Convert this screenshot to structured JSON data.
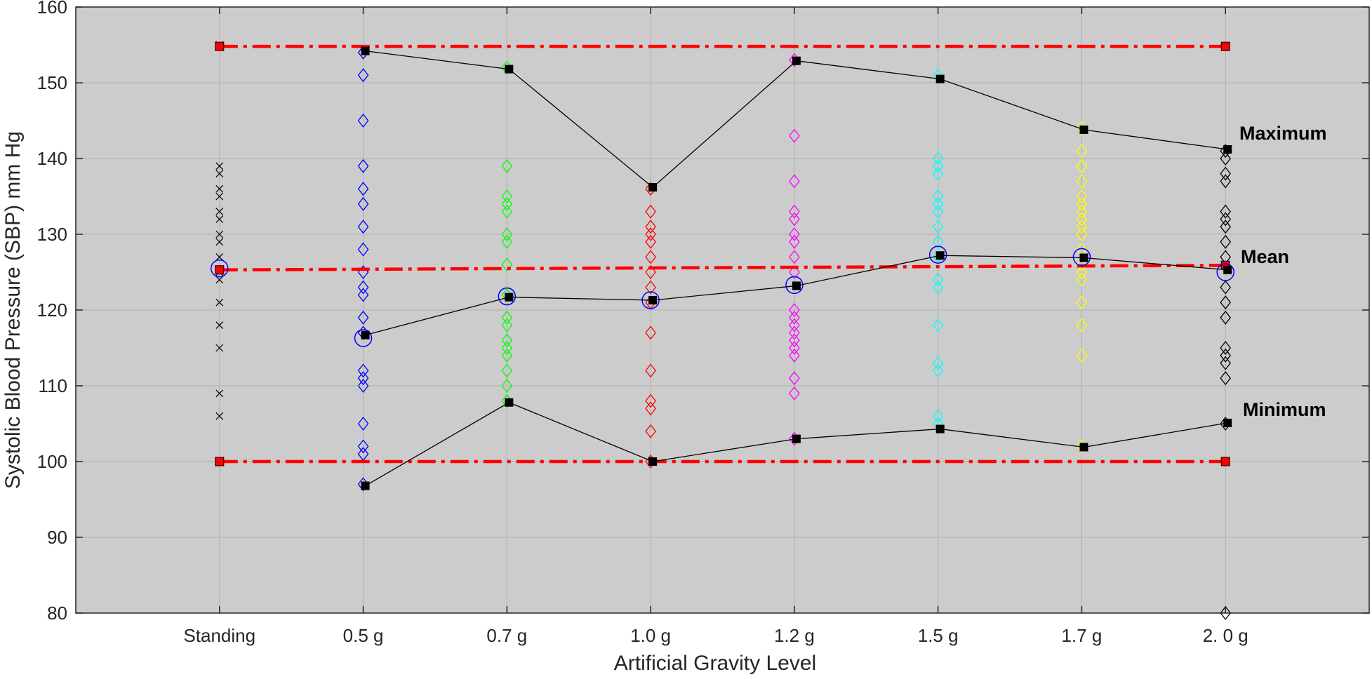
{
  "chart_data": {
    "type": "scatter",
    "title": "",
    "xlabel": "Artificial Gravity Level",
    "ylabel": "Systolic Blood Pressure (SBP) mm Hg",
    "categories": [
      "Standing",
      "0.5 g",
      "0.7 g",
      "1.0 g",
      "1.2 g",
      "1.5 g",
      "1.7 g",
      "2. 0 g"
    ],
    "y_ticks": [
      "80",
      "90",
      "100",
      "110",
      "120",
      "130",
      "140",
      "150",
      "160"
    ],
    "xlim": [
      0,
      9
    ],
    "ylim": [
      80,
      160
    ],
    "grid": true,
    "background_color": "#cccccc",
    "individual_series": [
      {
        "category": "Standing",
        "marker": "x",
        "color": "#000000",
        "values": [
          155,
          139,
          138,
          136,
          135,
          133,
          132,
          130,
          129,
          127,
          125,
          124,
          121,
          118,
          115,
          109,
          106,
          100
        ]
      },
      {
        "category": "0.5 g",
        "marker": "diamond",
        "color": "#0000ff",
        "values": [
          154,
          151,
          145,
          139,
          136,
          134,
          131,
          128,
          125,
          123,
          122,
          119,
          117,
          112,
          111,
          110,
          105,
          102,
          101,
          97
        ]
      },
      {
        "category": "0.7 g",
        "marker": "diamond",
        "color": "#00ff00",
        "values": [
          152,
          139,
          135,
          134,
          133,
          130,
          129,
          126,
          122,
          119,
          118,
          116,
          115,
          114,
          112,
          110,
          108
        ]
      },
      {
        "category": "1.0 g",
        "marker": "diamond",
        "color": "#ff0000",
        "values": [
          136,
          133,
          131,
          130,
          129,
          127,
          125,
          123,
          121,
          117,
          112,
          108,
          107,
          104,
          100
        ]
      },
      {
        "category": "1.2 g",
        "marker": "diamond",
        "color": "#ff00ff",
        "values": [
          153,
          143,
          137,
          133,
          132,
          130,
          129,
          127,
          125,
          120,
          119,
          118,
          117,
          116,
          115,
          114,
          111,
          109,
          103
        ]
      },
      {
        "category": "1.5 g",
        "marker": "diamond",
        "color": "#00ffff",
        "values": [
          151,
          140,
          139,
          138,
          135,
          134,
          133,
          131,
          129,
          127,
          124,
          123,
          118,
          113,
          112,
          106,
          105
        ]
      },
      {
        "category": "1.7 g",
        "marker": "diamond",
        "color": "#ffff00",
        "values": [
          144,
          141,
          139,
          137,
          135,
          134,
          133,
          132,
          131,
          130,
          128,
          126,
          125,
          124,
          121,
          118,
          114,
          102
        ]
      },
      {
        "category": "2. 0 g",
        "marker": "diamond",
        "color": "#000000",
        "values": [
          141,
          140,
          138,
          137,
          133,
          132,
          131,
          129,
          127,
          123,
          121,
          119,
          115,
          114,
          113,
          111,
          105,
          80
        ]
      }
    ],
    "series": [
      {
        "name": "Maximum",
        "color": "#000000",
        "marker": "square",
        "values": [
          null,
          154.2,
          151.8,
          136.2,
          152.9,
          150.5,
          143.8,
          141.2
        ]
      },
      {
        "name": "Mean",
        "color": "#000000",
        "marker": "square",
        "values": [
          null,
          116.7,
          121.7,
          121.3,
          123.2,
          127.2,
          126.9,
          125.3
        ]
      },
      {
        "name": "Minimum",
        "color": "#000000",
        "marker": "square",
        "values": [
          null,
          96.8,
          107.8,
          100.0,
          103.0,
          104.3,
          101.9,
          105.1
        ]
      }
    ],
    "group_means": {
      "marker": "circle",
      "color": "#0000ff",
      "values": [
        125.5,
        116.3,
        121.8,
        121.3,
        123.3,
        127.3,
        127.0,
        125.0
      ]
    },
    "reference_lines": [
      {
        "color": "#ff0000",
        "style": "dash-dot",
        "from": [
          1,
          154.8
        ],
        "to": [
          8,
          154.8
        ]
      },
      {
        "color": "#ff0000",
        "style": "dash-dot",
        "from": [
          1,
          125.3
        ],
        "to": [
          8,
          125.9
        ]
      },
      {
        "color": "#ff0000",
        "style": "dash-dot",
        "from": [
          1,
          100.0
        ],
        "to": [
          8,
          100.0
        ]
      }
    ]
  }
}
